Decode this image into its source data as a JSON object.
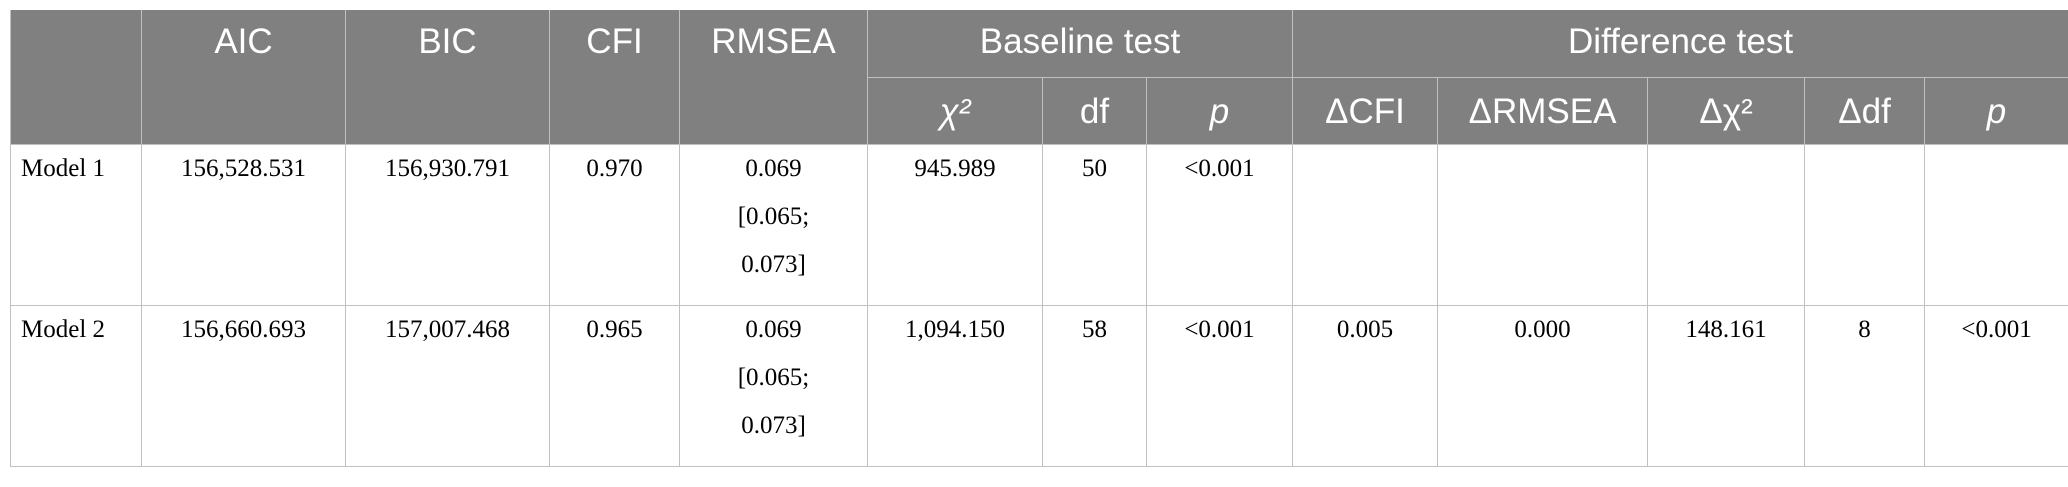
{
  "headers": {
    "aic": "AIC",
    "bic": "BIC",
    "cfi": "CFI",
    "rmsea": "RMSEA",
    "baseline_group": "Baseline test",
    "difference_group": "Difference test",
    "chi2": "χ²",
    "df": "df",
    "p": "p",
    "dcfi": "ΔCFI",
    "drmsea": "ΔRMSEA",
    "dchi2": "Δχ²",
    "ddf": "Δdf",
    "dp": "p"
  },
  "rows": [
    {
      "model": "Model 1",
      "aic": "156,528.531",
      "bic": "156,930.791",
      "cfi": "0.970",
      "rmsea": "0.069",
      "rmsea_ci_low": "[0.065;",
      "rmsea_ci_high": "0.073]",
      "chi2": "945.989",
      "df": "50",
      "p": "<0.001",
      "dcfi": "",
      "drmsea": "",
      "dchi2": "",
      "ddf": "",
      "dp": ""
    },
    {
      "model": "Model 2",
      "aic": "156,660.693",
      "bic": "157,007.468",
      "cfi": "0.965",
      "rmsea": "0.069",
      "rmsea_ci_low": "[0.065;",
      "rmsea_ci_high": "0.073]",
      "chi2": "1,094.150",
      "df": "58",
      "p": "<0.001",
      "dcfi": "0.005",
      "drmsea": "0.000",
      "dchi2": "148.161",
      "ddf": "8",
      "dp": "<0.001"
    }
  ]
}
